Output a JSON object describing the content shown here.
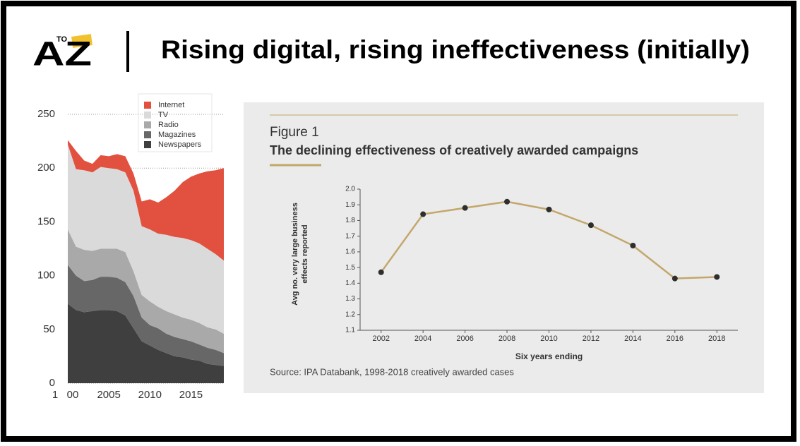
{
  "header": {
    "logo_small": "TO",
    "logo": "AZ",
    "title": "Rising digital, rising ineffectiveness (initially)"
  },
  "chart_data": [
    {
      "type": "area",
      "stacked": true,
      "x": [
        2000,
        2001,
        2002,
        2003,
        2004,
        2005,
        2006,
        2007,
        2008,
        2009,
        2010,
        2011,
        2012,
        2013,
        2014,
        2015,
        2016,
        2017,
        2018,
        2019
      ],
      "series": [
        {
          "name": "Newspapers",
          "color": "#3f3f3f",
          "values": [
            74,
            68,
            66,
            67,
            68,
            68,
            67,
            63,
            51,
            39,
            35,
            31,
            28,
            25,
            24,
            22,
            21,
            18,
            17,
            16
          ]
        },
        {
          "name": "Magazines",
          "color": "#676767",
          "values": [
            36,
            32,
            29,
            29,
            31,
            31,
            31,
            31,
            30,
            22,
            19,
            20,
            18,
            18,
            17,
            17,
            15,
            15,
            14,
            12
          ]
        },
        {
          "name": "Radio",
          "color": "#a9a9a9",
          "values": [
            33,
            27,
            29,
            27,
            26,
            26,
            27,
            28,
            23,
            21,
            22,
            20,
            21,
            21,
            20,
            20,
            20,
            19,
            19,
            18
          ]
        },
        {
          "name": "TV",
          "color": "#dadada",
          "values": [
            79,
            72,
            74,
            73,
            76,
            75,
            74,
            74,
            75,
            64,
            67,
            68,
            71,
            72,
            74,
            74,
            74,
            73,
            70,
            68
          ]
        },
        {
          "name": "Internet",
          "color": "#e2513f",
          "values": [
            4,
            17,
            9,
            8,
            11,
            11,
            14,
            15,
            16,
            23,
            28,
            29,
            35,
            43,
            52,
            59,
            65,
            72,
            78,
            86
          ]
        }
      ],
      "xlim": [
        2000,
        2019
      ],
      "xticks": [
        {
          "value": 2000,
          "label": "00"
        },
        2005,
        2010,
        2015
      ],
      "ylim": [
        0,
        250
      ],
      "yticks": [
        0,
        50,
        100,
        150,
        200,
        250
      ],
      "grid": true,
      "annotations": [
        "1"
      ],
      "legend": "top-right"
    },
    {
      "type": "line",
      "subtitle": "Figure 1",
      "title": "The declining effectiveness of creatively awarded campaigns",
      "x": [
        2002,
        2004,
        2006,
        2008,
        2010,
        2012,
        2014,
        2016,
        2018
      ],
      "values": [
        1.47,
        1.84,
        1.88,
        1.92,
        1.87,
        1.77,
        1.64,
        1.43,
        1.44
      ],
      "color": "#c3a76b",
      "marker_color": "#2e2e2e",
      "xlim": [
        2001,
        2019
      ],
      "xticks": [
        2002,
        2004,
        2006,
        2008,
        2010,
        2012,
        2014,
        2016,
        2018
      ],
      "ylim": [
        1.1,
        2.0
      ],
      "yticks": [
        1.1,
        1.2,
        1.3,
        1.4,
        1.5,
        1.6,
        1.7,
        1.8,
        1.9,
        {
          "value": 2.0,
          "label": "2.0"
        }
      ],
      "x_label": "Six years ending",
      "y_label": [
        "Avg no. very large business",
        "effects reported"
      ],
      "source": "Source: IPA Databank, 1998-2018 creatively awarded cases"
    }
  ]
}
